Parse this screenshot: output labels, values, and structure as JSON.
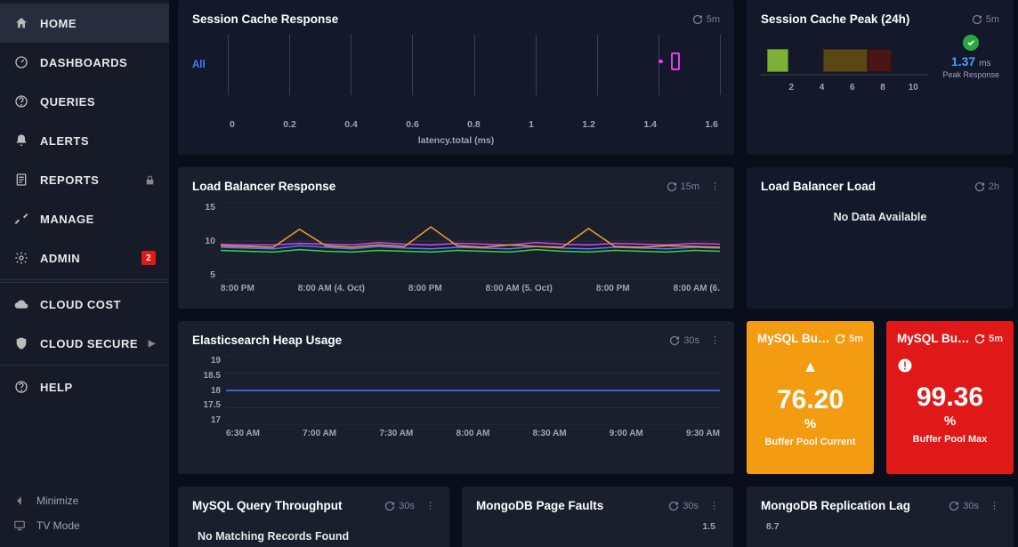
{
  "sidebar": {
    "items": [
      {
        "label": "HOME",
        "icon": "home",
        "active": true
      },
      {
        "label": "DASHBOARDS",
        "icon": "gauge"
      },
      {
        "label": "QUERIES",
        "icon": "help"
      },
      {
        "label": "ALERTS",
        "icon": "bell"
      },
      {
        "label": "REPORTS",
        "icon": "report",
        "lock": true
      },
      {
        "label": "MANAGE",
        "icon": "tools"
      },
      {
        "label": "ADMIN",
        "icon": "gear",
        "badge": "2"
      },
      {
        "label": "CLOUD COST",
        "icon": "cloud"
      },
      {
        "label": "CLOUD SECURE",
        "icon": "shield",
        "chev": true
      },
      {
        "label": "HELP",
        "icon": "help"
      }
    ],
    "footer": [
      {
        "label": "Minimize",
        "icon": "left"
      },
      {
        "label": "TV Mode",
        "icon": "monitor"
      }
    ]
  },
  "panels": {
    "session_cache_response": {
      "title": "Session Cache Response",
      "refresh": "5m",
      "type": "scatter",
      "all_label": "All",
      "x_ticks": [
        "0",
        "0.2",
        "0.4",
        "0.6",
        "0.8",
        "1",
        "1.2",
        "1.4",
        "1.6"
      ],
      "x_label": "latency.total (ms)",
      "xlim": [
        0,
        1.6
      ],
      "markers": [
        {
          "x": 1.44,
          "w": 0.03,
          "h": 20,
          "color": "#e040f0",
          "fill": "transparent"
        },
        {
          "x": 1.4,
          "w": 0.015,
          "h": 4,
          "color": "#e040f0",
          "fill": "#e040f0"
        }
      ],
      "background_color": "#13182a",
      "grid_color": "#3a3f55"
    },
    "session_cache_peak": {
      "title": "Session Cache Peak (24h)",
      "refresh": "5m",
      "type": "bar",
      "xlim": [
        0,
        11
      ],
      "x_ticks": [
        "2",
        "4",
        "6",
        "8",
        "10"
      ],
      "bars": [
        {
          "from": 0.4,
          "to": 1.8,
          "color": "#7db135"
        },
        {
          "from": 4.1,
          "to": 7.0,
          "color": "#5b4615"
        },
        {
          "from": 7.0,
          "to": 8.6,
          "color": "#4a1515"
        }
      ],
      "value": "1.37",
      "unit": "ms",
      "value_label": "Peak Response",
      "value_color": "#4a9fff",
      "status": "ok",
      "status_color": "#2aa83f"
    },
    "lb_response": {
      "title": "Load Balancer Response",
      "refresh": "15m",
      "type": "line",
      "y_ticks": [
        "15",
        "10",
        "5"
      ],
      "x_ticks": [
        "8:00 PM",
        "8:00 AM (4. Oct)",
        "8:00 PM",
        "8:00 AM (5. Oct)",
        "8:00 PM",
        "8:00 AM (6."
      ],
      "ylim": [
        5,
        15
      ],
      "series": [
        {
          "color": "#4a7cff",
          "data": [
            9.2,
            9.1,
            9.0,
            9.4,
            9.2,
            9.0,
            9.3,
            9.1,
            9.0,
            9.2,
            9.1,
            9.0,
            9.3,
            9.1,
            9.0,
            9.2,
            9.1,
            9.0,
            9.2,
            9.1
          ]
        },
        {
          "color": "#e040f0",
          "data": [
            9.6,
            9.5,
            9.5,
            9.7,
            9.6,
            9.5,
            9.8,
            9.6,
            9.5,
            9.7,
            9.6,
            9.5,
            9.8,
            9.6,
            9.5,
            9.7,
            9.6,
            9.5,
            9.7,
            9.6
          ]
        },
        {
          "color": "#f0a030",
          "data": [
            9.4,
            9.3,
            9.2,
            11.5,
            9.4,
            9.2,
            9.5,
            9.3,
            11.8,
            9.4,
            9.2,
            9.5,
            9.3,
            9.2,
            11.6,
            9.3,
            9.2,
            9.4,
            9.3,
            9.2
          ]
        },
        {
          "color": "#40d040",
          "data": [
            8.8,
            8.7,
            8.6,
            8.9,
            8.7,
            8.6,
            8.8,
            8.7,
            8.6,
            8.8,
            8.7,
            8.6,
            8.9,
            8.7,
            8.6,
            8.8,
            8.7,
            8.6,
            8.8,
            8.7
          ]
        }
      ],
      "grid_color": "#2a2f42",
      "background_color": "#1a1f2e"
    },
    "lb_load": {
      "title": "Load Balancer Load",
      "refresh": "2h",
      "message": "No Data Available"
    },
    "es_heap": {
      "title": "Elasticsearch Heap Usage",
      "refresh": "30s",
      "type": "line",
      "y_ticks": [
        "19",
        "18.5",
        "18",
        "17.5",
        "17"
      ],
      "ylim": [
        17,
        19
      ],
      "x_ticks": [
        "6:30 AM",
        "7:00 AM",
        "7:30 AM",
        "8:00 AM",
        "8:30 AM",
        "9:00 AM",
        "9:30 AM"
      ],
      "series": [
        {
          "color": "#4a7cff",
          "data": [
            18,
            18,
            18,
            18,
            18,
            18,
            18,
            18,
            18,
            18
          ]
        }
      ],
      "grid_color": "#2a2f42",
      "background_color": "#1a1f2e"
    },
    "mysql_buffer_current": {
      "title": "MySQL Bu…",
      "refresh": "5m",
      "icon": "warn",
      "value": "76.20",
      "unit": "%",
      "label": "Buffer Pool Current",
      "bg_color": "#f39c12"
    },
    "mysql_buffer_max": {
      "title": "MySQL Bu…",
      "refresh": "5m",
      "icon": "error",
      "value": "99.36",
      "unit": "%",
      "label": "Buffer Pool Max",
      "bg_color": "#e01818"
    },
    "mysql_throughput": {
      "title": "MySQL Query Throughput",
      "refresh": "30s",
      "message": "No Matching Records Found"
    },
    "mongo_faults": {
      "title": "MongoDB Page Faults",
      "refresh": "30s",
      "y_ticks": [
        "1.5"
      ]
    },
    "mongo_lag": {
      "title": "MongoDB Replication Lag",
      "refresh": "30s",
      "y_ticks": [
        "8.7"
      ]
    }
  }
}
